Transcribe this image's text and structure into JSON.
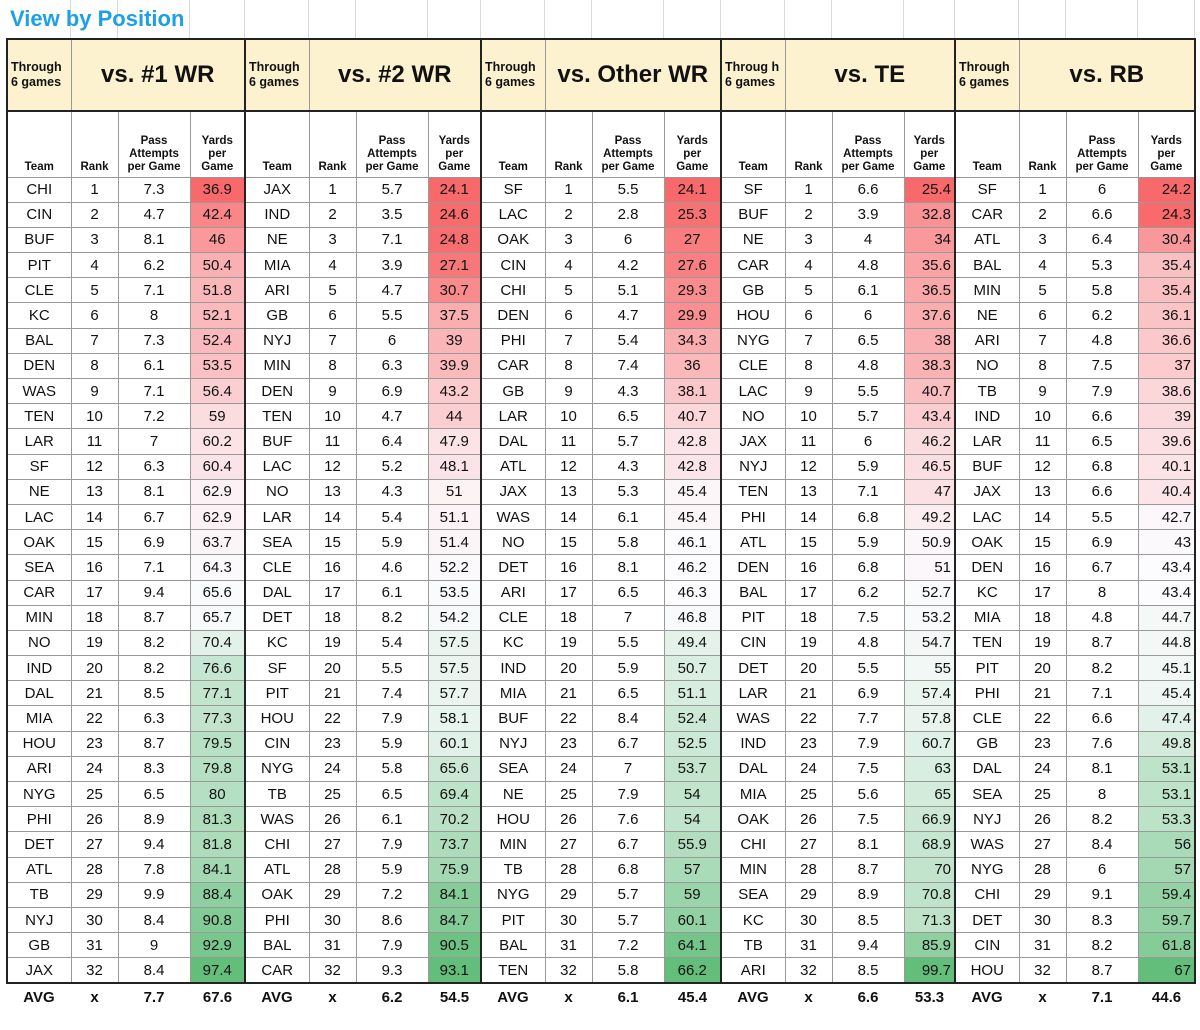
{
  "title": "View by Position",
  "groups": [
    {
      "through": "Through 6 games",
      "title": "vs. #1 WR",
      "headers": {
        "team": "Team",
        "rank": "Rank",
        "pass": "Pass Attempts per Game",
        "yards": "Yards per Game"
      },
      "rows": [
        [
          "CHI",
          1,
          "7.3",
          "36.9"
        ],
        [
          "CIN",
          2,
          "4.7",
          "42.4"
        ],
        [
          "BUF",
          3,
          "8.1",
          "46"
        ],
        [
          "PIT",
          4,
          "6.2",
          "50.4"
        ],
        [
          "CLE",
          5,
          "7.1",
          "51.8"
        ],
        [
          "KC",
          6,
          "8",
          "52.1"
        ],
        [
          "BAL",
          7,
          "7.3",
          "52.4"
        ],
        [
          "DEN",
          8,
          "6.1",
          "53.5"
        ],
        [
          "WAS",
          9,
          "7.1",
          "56.4"
        ],
        [
          "TEN",
          10,
          "7.2",
          "59"
        ],
        [
          "LAR",
          11,
          "7",
          "60.2"
        ],
        [
          "SF",
          12,
          "6.3",
          "60.4"
        ],
        [
          "NE",
          13,
          "8.1",
          "62.9"
        ],
        [
          "LAC",
          14,
          "6.7",
          "62.9"
        ],
        [
          "OAK",
          15,
          "6.9",
          "63.7"
        ],
        [
          "SEA",
          16,
          "7.1",
          "64.3"
        ],
        [
          "CAR",
          17,
          "9.4",
          "65.6"
        ],
        [
          "MIN",
          18,
          "8.7",
          "65.7"
        ],
        [
          "NO",
          19,
          "8.2",
          "70.4"
        ],
        [
          "IND",
          20,
          "8.2",
          "76.6"
        ],
        [
          "DAL",
          21,
          "8.5",
          "77.1"
        ],
        [
          "MIA",
          22,
          "6.3",
          "77.3"
        ],
        [
          "HOU",
          23,
          "8.7",
          "79.5"
        ],
        [
          "ARI",
          24,
          "8.3",
          "79.8"
        ],
        [
          "NYG",
          25,
          "6.5",
          "80"
        ],
        [
          "PHI",
          26,
          "8.9",
          "81.3"
        ],
        [
          "DET",
          27,
          "9.4",
          "81.8"
        ],
        [
          "ATL",
          28,
          "7.8",
          "84.1"
        ],
        [
          "TB",
          29,
          "9.9",
          "88.4"
        ],
        [
          "NYJ",
          30,
          "8.4",
          "90.8"
        ],
        [
          "GB",
          31,
          "9",
          "92.9"
        ],
        [
          "JAX",
          32,
          "8.4",
          "97.4"
        ]
      ],
      "avg": [
        "AVG",
        "x",
        "7.7",
        "67.6"
      ]
    },
    {
      "through": "Through 6 games",
      "title": "vs. #2 WR",
      "headers": {
        "team": "Team",
        "rank": "Rank",
        "pass": "Pass Attempts per Game",
        "yards": "Yards per Game"
      },
      "rows": [
        [
          "JAX",
          1,
          "5.7",
          "24.1"
        ],
        [
          "IND",
          2,
          "3.5",
          "24.6"
        ],
        [
          "NE",
          3,
          "7.1",
          "24.8"
        ],
        [
          "MIA",
          4,
          "3.9",
          "27.1"
        ],
        [
          "ARI",
          5,
          "4.7",
          "30.7"
        ],
        [
          "GB",
          6,
          "5.5",
          "37.5"
        ],
        [
          "NYJ",
          7,
          "6",
          "39"
        ],
        [
          "MIN",
          8,
          "6.3",
          "39.9"
        ],
        [
          "DEN",
          9,
          "6.9",
          "43.2"
        ],
        [
          "TEN",
          10,
          "4.7",
          "44"
        ],
        [
          "BUF",
          11,
          "6.4",
          "47.9"
        ],
        [
          "LAC",
          12,
          "5.2",
          "48.1"
        ],
        [
          "NO",
          13,
          "4.3",
          "51"
        ],
        [
          "LAR",
          14,
          "5.4",
          "51.1"
        ],
        [
          "SEA",
          15,
          "5.9",
          "51.4"
        ],
        [
          "CLE",
          16,
          "4.6",
          "52.2"
        ],
        [
          "DAL",
          17,
          "6.1",
          "53.5"
        ],
        [
          "DET",
          18,
          "8.2",
          "54.2"
        ],
        [
          "KC",
          19,
          "5.4",
          "57.5"
        ],
        [
          "SF",
          20,
          "5.5",
          "57.5"
        ],
        [
          "PIT",
          21,
          "7.4",
          "57.7"
        ],
        [
          "HOU",
          22,
          "7.9",
          "58.1"
        ],
        [
          "CIN",
          23,
          "5.9",
          "60.1"
        ],
        [
          "NYG",
          24,
          "5.8",
          "65.6"
        ],
        [
          "TB",
          25,
          "6.5",
          "69.4"
        ],
        [
          "WAS",
          26,
          "6.1",
          "70.2"
        ],
        [
          "CHI",
          27,
          "7.9",
          "73.7"
        ],
        [
          "ATL",
          28,
          "5.9",
          "75.9"
        ],
        [
          "OAK",
          29,
          "7.2",
          "84.1"
        ],
        [
          "PHI",
          30,
          "8.6",
          "84.7"
        ],
        [
          "BAL",
          31,
          "7.9",
          "90.5"
        ],
        [
          "CAR",
          32,
          "9.3",
          "93.1"
        ]
      ],
      "avg": [
        "AVG",
        "x",
        "6.2",
        "54.5"
      ]
    },
    {
      "through": "Through 6 games",
      "title": "vs. Other WR",
      "headers": {
        "team": "Team",
        "rank": "Rank",
        "pass": "Pass Attempts per Game",
        "yards": "Yards per Game"
      },
      "rows": [
        [
          "SF",
          1,
          "5.5",
          "24.1"
        ],
        [
          "LAC",
          2,
          "2.8",
          "25.3"
        ],
        [
          "OAK",
          3,
          "6",
          "27"
        ],
        [
          "CIN",
          4,
          "4.2",
          "27.6"
        ],
        [
          "CHI",
          5,
          "5.1",
          "29.3"
        ],
        [
          "DEN",
          6,
          "4.7",
          "29.9"
        ],
        [
          "PHI",
          7,
          "5.4",
          "34.3"
        ],
        [
          "CAR",
          8,
          "7.4",
          "36"
        ],
        [
          "GB",
          9,
          "4.3",
          "38.1"
        ],
        [
          "LAR",
          10,
          "6.5",
          "40.7"
        ],
        [
          "DAL",
          11,
          "5.7",
          "42.8"
        ],
        [
          "ATL",
          12,
          "4.3",
          "42.8"
        ],
        [
          "JAX",
          13,
          "5.3",
          "45.4"
        ],
        [
          "WAS",
          14,
          "6.1",
          "45.4"
        ],
        [
          "NO",
          15,
          "5.8",
          "46.1"
        ],
        [
          "DET",
          16,
          "8.1",
          "46.2"
        ],
        [
          "ARI",
          17,
          "6.5",
          "46.3"
        ],
        [
          "CLE",
          18,
          "7",
          "46.8"
        ],
        [
          "KC",
          19,
          "5.5",
          "49.4"
        ],
        [
          "IND",
          20,
          "5.9",
          "50.7"
        ],
        [
          "MIA",
          21,
          "6.5",
          "51.1"
        ],
        [
          "BUF",
          22,
          "8.4",
          "52.4"
        ],
        [
          "NYJ",
          23,
          "6.7",
          "52.5"
        ],
        [
          "SEA",
          24,
          "7",
          "53.7"
        ],
        [
          "NE",
          25,
          "7.9",
          "54"
        ],
        [
          "HOU",
          26,
          "7.6",
          "54"
        ],
        [
          "MIN",
          27,
          "6.7",
          "55.9"
        ],
        [
          "TB",
          28,
          "6.8",
          "57"
        ],
        [
          "NYG",
          29,
          "5.7",
          "59"
        ],
        [
          "PIT",
          30,
          "5.7",
          "60.1"
        ],
        [
          "BAL",
          31,
          "7.2",
          "64.1"
        ],
        [
          "TEN",
          32,
          "5.8",
          "66.2"
        ]
      ],
      "avg": [
        "AVG",
        "x",
        "6.1",
        "45.4"
      ]
    },
    {
      "through": "Throug h 6 games",
      "title": "vs. TE",
      "headers": {
        "team": "Team",
        "rank": "Rank",
        "pass": "Pass Attempts per Game",
        "yards": "Yards per Game"
      },
      "rows": [
        [
          "SF",
          1,
          "6.6",
          "25.4"
        ],
        [
          "BUF",
          2,
          "3.9",
          "32.8"
        ],
        [
          "NE",
          3,
          "4",
          "34"
        ],
        [
          "CAR",
          4,
          "4.8",
          "35.6"
        ],
        [
          "GB",
          5,
          "6.1",
          "36.5"
        ],
        [
          "HOU",
          6,
          "6",
          "37.6"
        ],
        [
          "NYG",
          7,
          "6.5",
          "38"
        ],
        [
          "CLE",
          8,
          "4.8",
          "38.3"
        ],
        [
          "LAC",
          9,
          "5.5",
          "40.7"
        ],
        [
          "NO",
          10,
          "5.7",
          "43.4"
        ],
        [
          "JAX",
          11,
          "6",
          "46.2"
        ],
        [
          "NYJ",
          12,
          "5.9",
          "46.5"
        ],
        [
          "TEN",
          13,
          "7.1",
          "47"
        ],
        [
          "PHI",
          14,
          "6.8",
          "49.2"
        ],
        [
          "ATL",
          15,
          "5.9",
          "50.9"
        ],
        [
          "DEN",
          16,
          "6.8",
          "51"
        ],
        [
          "BAL",
          17,
          "6.2",
          "52.7"
        ],
        [
          "PIT",
          18,
          "7.5",
          "53.2"
        ],
        [
          "CIN",
          19,
          "4.8",
          "54.7"
        ],
        [
          "DET",
          20,
          "5.5",
          "55"
        ],
        [
          "LAR",
          21,
          "6.9",
          "57.4"
        ],
        [
          "WAS",
          22,
          "7.7",
          "57.8"
        ],
        [
          "IND",
          23,
          "7.9",
          "60.7"
        ],
        [
          "DAL",
          24,
          "7.5",
          "63"
        ],
        [
          "MIA",
          25,
          "5.6",
          "65"
        ],
        [
          "OAK",
          26,
          "7.5",
          "66.9"
        ],
        [
          "CHI",
          27,
          "8.1",
          "68.9"
        ],
        [
          "MIN",
          28,
          "8.7",
          "70"
        ],
        [
          "SEA",
          29,
          "8.9",
          "70.8"
        ],
        [
          "KC",
          30,
          "8.5",
          "71.3"
        ],
        [
          "TB",
          31,
          "9.4",
          "85.9"
        ],
        [
          "ARI",
          32,
          "8.5",
          "99.7"
        ]
      ],
      "avg": [
        "AVG",
        "x",
        "6.6",
        "53.3"
      ]
    },
    {
      "through": "Through 6 games",
      "title": "vs. RB",
      "headers": {
        "team": "Team",
        "rank": "Rank",
        "pass": "Pass Attempts per Game",
        "yards": "Yards per Game"
      },
      "rows": [
        [
          "SF",
          1,
          "6",
          "24.2"
        ],
        [
          "CAR",
          2,
          "6.6",
          "24.3"
        ],
        [
          "ATL",
          3,
          "6.4",
          "30.4"
        ],
        [
          "BAL",
          4,
          "5.3",
          "35.4"
        ],
        [
          "MIN",
          5,
          "5.8",
          "35.4"
        ],
        [
          "NE",
          6,
          "6.2",
          "36.1"
        ],
        [
          "ARI",
          7,
          "4.8",
          "36.6"
        ],
        [
          "NO",
          8,
          "7.5",
          "37"
        ],
        [
          "TB",
          9,
          "7.9",
          "38.6"
        ],
        [
          "IND",
          10,
          "6.6",
          "39"
        ],
        [
          "LAR",
          11,
          "6.5",
          "39.6"
        ],
        [
          "BUF",
          12,
          "6.8",
          "40.1"
        ],
        [
          "JAX",
          13,
          "6.6",
          "40.4"
        ],
        [
          "LAC",
          14,
          "5.5",
          "42.7"
        ],
        [
          "OAK",
          15,
          "6.9",
          "43"
        ],
        [
          "DEN",
          16,
          "6.7",
          "43.4"
        ],
        [
          "KC",
          17,
          "8",
          "43.4"
        ],
        [
          "MIA",
          18,
          "4.8",
          "44.7"
        ],
        [
          "TEN",
          19,
          "8.7",
          "44.8"
        ],
        [
          "PIT",
          20,
          "8.2",
          "45.1"
        ],
        [
          "PHI",
          21,
          "7.1",
          "45.4"
        ],
        [
          "CLE",
          22,
          "6.6",
          "47.4"
        ],
        [
          "GB",
          23,
          "7.6",
          "49.8"
        ],
        [
          "DAL",
          24,
          "8.1",
          "53.1"
        ],
        [
          "SEA",
          25,
          "8",
          "53.1"
        ],
        [
          "NYJ",
          26,
          "8.2",
          "53.3"
        ],
        [
          "WAS",
          27,
          "8.4",
          "56"
        ],
        [
          "NYG",
          28,
          "6",
          "57"
        ],
        [
          "CHI",
          29,
          "9.1",
          "59.4"
        ],
        [
          "DET",
          30,
          "8.3",
          "59.7"
        ],
        [
          "CIN",
          31,
          "8.2",
          "61.8"
        ],
        [
          "HOU",
          32,
          "8.7",
          "67"
        ]
      ],
      "avg": [
        "AVG",
        "x",
        "7.1",
        "44.6"
      ]
    }
  ],
  "scale_colors": {
    "low": "#f8696b",
    "mid": "#fcfcff",
    "high": "#63be7b"
  }
}
